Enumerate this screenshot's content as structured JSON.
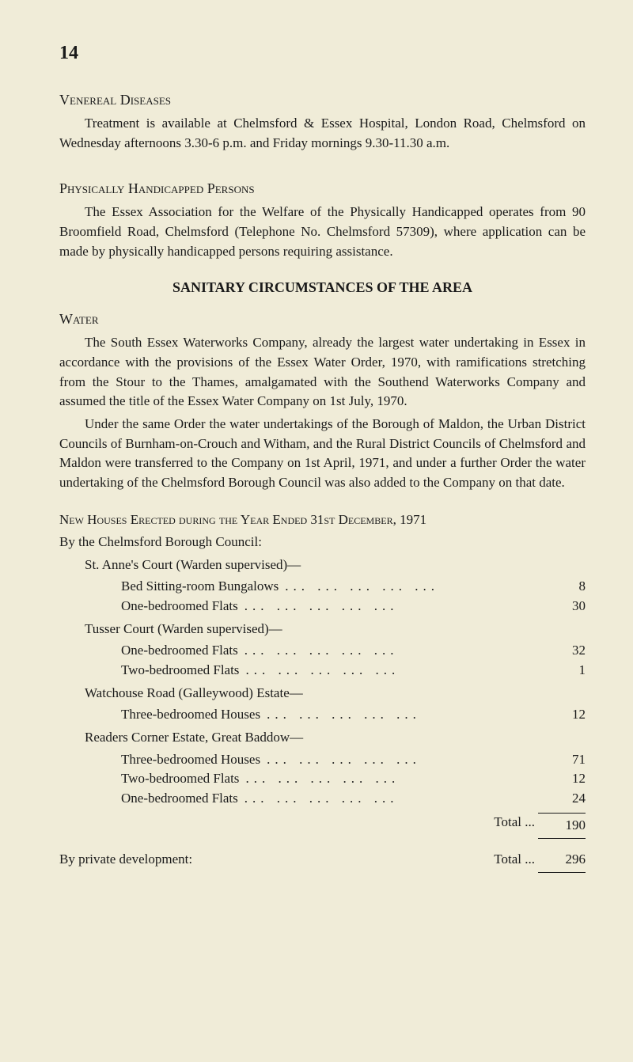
{
  "page_number": "14",
  "sections": {
    "venereal": {
      "heading": "Venereal Diseases",
      "body": "Treatment is available at Chelmsford & Essex Hospital, London Road, Chelmsford on Wednesday afternoons 3.30-6 p.m. and Friday mornings 9.30-11.30 a.m."
    },
    "handicapped": {
      "heading": "Physically Handicapped Persons",
      "body": "The Essex Association for the Welfare of the Physically Handicapped operates from 90 Broomfield Road, Chelmsford (Telephone No. Chelmsford 57309), where application can be made by physically handicapped persons requiring assistance."
    },
    "sanitary": {
      "heading": "SANITARY CIRCUMSTANCES OF THE AREA",
      "water_heading": "Water",
      "p1": "The South Essex Waterworks Company, already the largest water undertaking in Essex in accordance with the provisions of the Essex Water Order, 1970, with ramifications stretching from the Stour to the Thames, amalgamated with the Southend Waterworks Company and assumed the title of the Essex Water Company on 1st July, 1970.",
      "p2": "Under the same Order the water undertakings of the Borough of Maldon, the Urban District Councils of Burnham-on-Crouch and Witham, and the Rural District Councils of Chelmsford and Maldon were transferred to the Company on 1st April, 1971, and under a further Order the water undertaking of the Chelmsford Borough Council was also added to the Company on that date."
    },
    "houses": {
      "heading": "New Houses Erected during the Year Ended 31st December, 1971",
      "subheading": "By the Chelmsford Borough Council:",
      "groups": [
        {
          "title": "St. Anne's Court (Warden supervised)—",
          "items": [
            {
              "label": "Bed Sitting-room Bungalows",
              "value": "8"
            },
            {
              "label": "One-bedroomed Flats",
              "value": "30"
            }
          ]
        },
        {
          "title": "Tusser Court (Warden supervised)—",
          "items": [
            {
              "label": "One-bedroomed Flats",
              "value": "32"
            },
            {
              "label": "Two-bedroomed Flats",
              "value": "1"
            }
          ]
        },
        {
          "title": "Watchouse Road (Galleywood) Estate—",
          "items": [
            {
              "label": "Three-bedroomed Houses",
              "value": "12"
            }
          ]
        },
        {
          "title": "Readers Corner Estate, Great Baddow—",
          "items": [
            {
              "label": "Three-bedroomed Houses",
              "value": "71"
            },
            {
              "label": "Two-bedroomed Flats",
              "value": "12"
            },
            {
              "label": "One-bedroomed Flats",
              "value": "24"
            }
          ]
        }
      ],
      "total_label": "Total ...",
      "total_value": "190",
      "private_label": "By private development:",
      "private_total_label": "Total ...",
      "private_value": "296"
    }
  },
  "styling": {
    "background_color": "#f0ecd8",
    "text_color": "#1a1a1a",
    "body_fontsize": 17,
    "page_number_fontsize": 24
  }
}
